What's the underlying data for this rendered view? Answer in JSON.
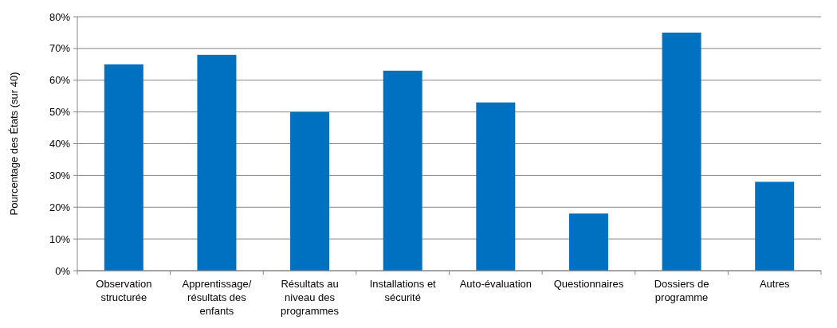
{
  "chart_data": {
    "type": "bar",
    "ylabel": "Pourcentage des États (sur 40)",
    "categories": [
      "Observation structurée",
      "Apprentissage/ résultats des enfants",
      "Résultats au niveau des programmes",
      "Installations et sécurité",
      "Auto-évaluation",
      "Questionnaires",
      "Dossiers de programme",
      "Autres"
    ],
    "values": [
      65,
      68,
      50,
      63,
      53,
      18,
      75,
      28
    ],
    "color": "#0070c0",
    "ylim": [
      0,
      80
    ],
    "yticks": [
      {
        "value": 0,
        "label": "0%"
      },
      {
        "value": 10,
        "label": "10%"
      },
      {
        "value": 20,
        "label": "20%"
      },
      {
        "value": 30,
        "label": "30%"
      },
      {
        "value": 40,
        "label": "40%"
      },
      {
        "value": 50,
        "label": "50%"
      },
      {
        "value": 60,
        "label": "60%"
      },
      {
        "value": 70,
        "label": "70%"
      },
      {
        "value": 80,
        "label": "80%"
      }
    ],
    "grid": "y"
  }
}
